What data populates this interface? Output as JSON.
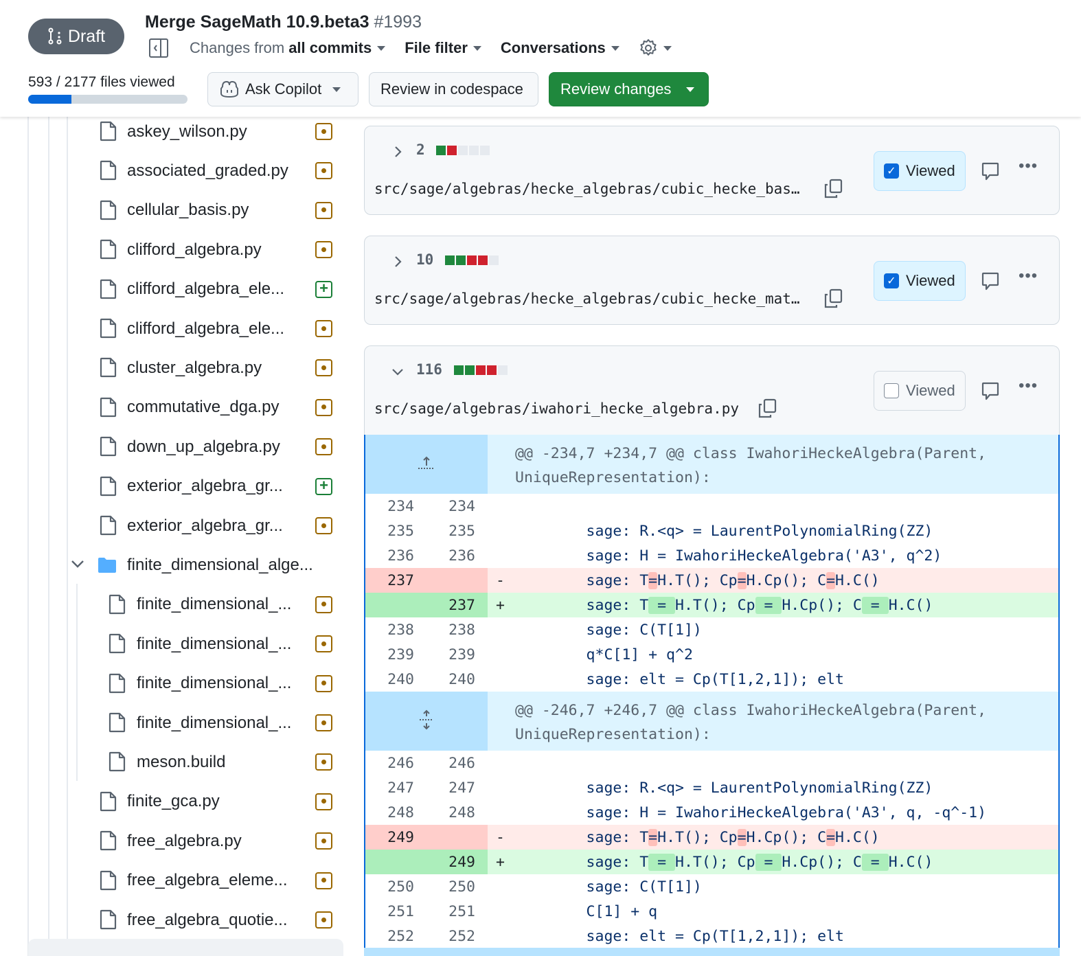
{
  "header": {
    "draft_label": "Draft",
    "title": "Merge SageMath 10.9.beta3",
    "number": "#1993",
    "changes_from_prefix": "Changes from",
    "changes_from_value": "all commits",
    "file_filter": "File filter",
    "conversations": "Conversations",
    "files_viewed": "593 / 2177 files viewed",
    "viewed_count": 593,
    "total_files": 2177,
    "ask_copilot": "Ask Copilot",
    "review_codespace": "Review in codespace",
    "review_changes": "Review changes"
  },
  "sidebar": {
    "items": [
      {
        "name": "askey_wilson.py",
        "type": "file",
        "level": 1,
        "status": "modified"
      },
      {
        "name": "associated_graded.py",
        "type": "file",
        "level": 1,
        "status": "modified"
      },
      {
        "name": "cellular_basis.py",
        "type": "file",
        "level": 1,
        "status": "modified"
      },
      {
        "name": "clifford_algebra.py",
        "type": "file",
        "level": 1,
        "status": "modified"
      },
      {
        "name": "clifford_algebra_ele...",
        "type": "file",
        "level": 1,
        "status": "added"
      },
      {
        "name": "clifford_algebra_ele...",
        "type": "file",
        "level": 1,
        "status": "modified"
      },
      {
        "name": "cluster_algebra.py",
        "type": "file",
        "level": 1,
        "status": "modified"
      },
      {
        "name": "commutative_dga.py",
        "type": "file",
        "level": 1,
        "status": "modified"
      },
      {
        "name": "down_up_algebra.py",
        "type": "file",
        "level": 1,
        "status": "modified"
      },
      {
        "name": "exterior_algebra_gr...",
        "type": "file",
        "level": 1,
        "status": "added"
      },
      {
        "name": "exterior_algebra_gr...",
        "type": "file",
        "level": 1,
        "status": "modified"
      },
      {
        "name": "finite_dimensional_alge...",
        "type": "folder",
        "level": 1,
        "status": ""
      },
      {
        "name": "finite_dimensional_...",
        "type": "file",
        "level": 2,
        "status": "modified"
      },
      {
        "name": "finite_dimensional_...",
        "type": "file",
        "level": 2,
        "status": "modified"
      },
      {
        "name": "finite_dimensional_...",
        "type": "file",
        "level": 2,
        "status": "modified"
      },
      {
        "name": "finite_dimensional_...",
        "type": "file",
        "level": 2,
        "status": "modified"
      },
      {
        "name": "meson.build",
        "type": "file",
        "level": 2,
        "status": "modified"
      },
      {
        "name": "finite_gca.py",
        "type": "file",
        "level": 1,
        "status": "modified"
      },
      {
        "name": "free_algebra.py",
        "type": "file",
        "level": 1,
        "status": "modified"
      },
      {
        "name": "free_algebra_eleme...",
        "type": "file",
        "level": 1,
        "status": "modified"
      },
      {
        "name": "free_algebra_quotie...",
        "type": "file",
        "level": 1,
        "status": "modified"
      }
    ]
  },
  "files": [
    {
      "count": "2",
      "diffstat": [
        "add",
        "del",
        "none",
        "none",
        "none"
      ],
      "path": "src/sage/algebras/hecke_algebras/cubic_hecke_bas…",
      "viewed": true,
      "expanded": false,
      "viewed_label": "Viewed"
    },
    {
      "count": "10",
      "diffstat": [
        "add",
        "add",
        "del",
        "del",
        "none"
      ],
      "path": "src/sage/algebras/hecke_algebras/cubic_hecke_mat…",
      "viewed": true,
      "expanded": false,
      "viewed_label": "Viewed"
    },
    {
      "count": "116",
      "diffstat": [
        "add",
        "add",
        "del",
        "del",
        "none"
      ],
      "path": "src/sage/algebras/iwahori_hecke_algebra.py",
      "viewed": false,
      "expanded": true,
      "viewed_label": "Viewed"
    }
  ],
  "diff": [
    {
      "kind": "hunk",
      "text": "@@ -234,7 +234,7 @@ class IwahoriHeckeAlgebra(Parent,\nUniqueRepresentation):",
      "icon": "expand-up-icon"
    },
    {
      "kind": "ctx",
      "old": "234",
      "new": "234",
      "segments": [
        {
          "t": ""
        }
      ]
    },
    {
      "kind": "ctx",
      "old": "235",
      "new": "235",
      "segments": [
        {
          "t": "        sage: R.<q> = LaurentPolynomialRing(ZZ)"
        }
      ]
    },
    {
      "kind": "ctx",
      "old": "236",
      "new": "236",
      "segments": [
        {
          "t": "        sage: H = IwahoriHeckeAlgebra('A3', q^2)"
        }
      ]
    },
    {
      "kind": "del",
      "old": "237",
      "new": "",
      "marker": "-",
      "segments": [
        {
          "t": "        sage: T"
        },
        {
          "t": "=",
          "hl": true
        },
        {
          "t": "H.T(); Cp"
        },
        {
          "t": "=",
          "hl": true
        },
        {
          "t": "H.Cp(); C"
        },
        {
          "t": "=",
          "hl": true
        },
        {
          "t": "H.C()"
        }
      ]
    },
    {
      "kind": "add",
      "old": "",
      "new": "237",
      "marker": "+",
      "segments": [
        {
          "t": "        sage: T"
        },
        {
          "t": " = ",
          "hl": true
        },
        {
          "t": "H.T(); Cp"
        },
        {
          "t": " = ",
          "hl": true
        },
        {
          "t": "H.Cp(); C"
        },
        {
          "t": " = ",
          "hl": true
        },
        {
          "t": "H.C()"
        }
      ]
    },
    {
      "kind": "ctx",
      "old": "238",
      "new": "238",
      "segments": [
        {
          "t": "        sage: C(T[1])"
        }
      ]
    },
    {
      "kind": "ctx",
      "old": "239",
      "new": "239",
      "segments": [
        {
          "t": "        q*C[1] + q^2"
        }
      ]
    },
    {
      "kind": "ctx",
      "old": "240",
      "new": "240",
      "segments": [
        {
          "t": "        sage: elt = Cp(T[1,2,1]); elt"
        }
      ]
    },
    {
      "kind": "hunk",
      "text": "@@ -246,7 +246,7 @@ class IwahoriHeckeAlgebra(Parent,\nUniqueRepresentation):",
      "icon": "expand-both-icon"
    },
    {
      "kind": "ctx",
      "old": "246",
      "new": "246",
      "segments": [
        {
          "t": ""
        }
      ]
    },
    {
      "kind": "ctx",
      "old": "247",
      "new": "247",
      "segments": [
        {
          "t": "        sage: R.<q> = LaurentPolynomialRing(ZZ)"
        }
      ]
    },
    {
      "kind": "ctx",
      "old": "248",
      "new": "248",
      "segments": [
        {
          "t": "        sage: H = IwahoriHeckeAlgebra('A3', q, -q^-1)"
        }
      ]
    },
    {
      "kind": "del",
      "old": "249",
      "new": "",
      "marker": "-",
      "segments": [
        {
          "t": "        sage: T"
        },
        {
          "t": "=",
          "hl": true
        },
        {
          "t": "H.T(); Cp"
        },
        {
          "t": "=",
          "hl": true
        },
        {
          "t": "H.Cp(); C"
        },
        {
          "t": "=",
          "hl": true
        },
        {
          "t": "H.C()"
        }
      ]
    },
    {
      "kind": "add",
      "old": "",
      "new": "249",
      "marker": "+",
      "segments": [
        {
          "t": "        sage: T"
        },
        {
          "t": " = ",
          "hl": true
        },
        {
          "t": "H.T(); Cp"
        },
        {
          "t": " = ",
          "hl": true
        },
        {
          "t": "H.Cp(); C"
        },
        {
          "t": " = ",
          "hl": true
        },
        {
          "t": "H.C()"
        }
      ]
    },
    {
      "kind": "ctx",
      "old": "250",
      "new": "250",
      "segments": [
        {
          "t": "        sage: C(T[1])"
        }
      ]
    },
    {
      "kind": "ctx",
      "old": "251",
      "new": "251",
      "segments": [
        {
          "t": "        C[1] + q"
        }
      ]
    },
    {
      "kind": "ctx",
      "old": "252",
      "new": "252",
      "segments": [
        {
          "t": "        sage: elt = Cp(T[1,2,1]); elt"
        }
      ]
    }
  ],
  "colors": {
    "add": "#1f883d",
    "del": "#cf222e",
    "none": "#e6eaef",
    "accent": "#0969da",
    "modified": "#9a6700",
    "added": "#1a7f37"
  }
}
